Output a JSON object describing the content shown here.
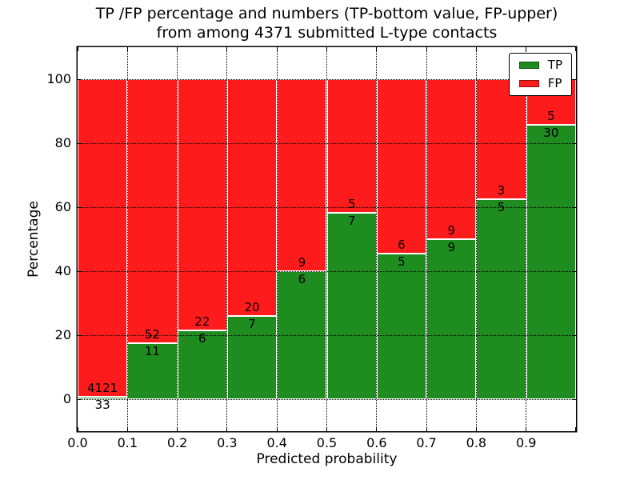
{
  "figure": {
    "title_line1": "TP /FP percentage and numbers (TP-bottom value, FP-upper)",
    "title_line2": "from among 4371 submitted L-type contacts",
    "xlabel": "Predicted probability",
    "ylabel": "Percentage"
  },
  "legend": {
    "position": "upper right",
    "items": [
      {
        "label": "TP",
        "color": "#1f8c1f"
      },
      {
        "label": "FP",
        "color": "#fd1b1b"
      }
    ]
  },
  "chart_data": {
    "type": "bar",
    "variant": "stacked-percentage-histogram",
    "title": "TP /FP percentage and numbers (TP-bottom value, FP-upper) from among 4371 submitted L-type contacts",
    "xlabel": "Predicted probability",
    "ylabel": "Percentage",
    "total_contacts": 4371,
    "bin_edges": [
      0.0,
      0.1,
      0.2,
      0.3,
      0.4,
      0.5,
      0.6,
      0.7,
      0.8,
      0.9,
      1.0
    ],
    "x_tick_labels": [
      "0.0",
      "0.1",
      "0.2",
      "0.3",
      "0.4",
      "0.5",
      "0.6",
      "0.7",
      "0.8",
      "0.9"
    ],
    "y_ticks": [
      0,
      20,
      40,
      60,
      80,
      100
    ],
    "y_tick_labels": [
      "0",
      "20",
      "40",
      "60",
      "80",
      "100"
    ],
    "xlim": [
      0.0,
      1.0
    ],
    "ylim": [
      -10,
      110
    ],
    "grid": "black dotted, drawn above bars",
    "bar_edge_color": "#ffffff",
    "annotation_rule": "FP count printed above the TP/FP boundary, TP count printed below it",
    "series": [
      {
        "name": "TP",
        "position": "bottom",
        "color": "#1f8c1f",
        "counts": [
          33,
          11,
          6,
          7,
          6,
          7,
          5,
          9,
          5,
          30
        ]
      },
      {
        "name": "FP",
        "position": "top",
        "color": "#fd1b1b",
        "counts": [
          4121,
          52,
          22,
          20,
          9,
          5,
          6,
          9,
          3,
          5
        ]
      }
    ],
    "tp_percent_of_bin": [
      0.79,
      17.46,
      21.43,
      25.93,
      40.0,
      58.33,
      45.45,
      50.0,
      62.5,
      85.71
    ]
  }
}
